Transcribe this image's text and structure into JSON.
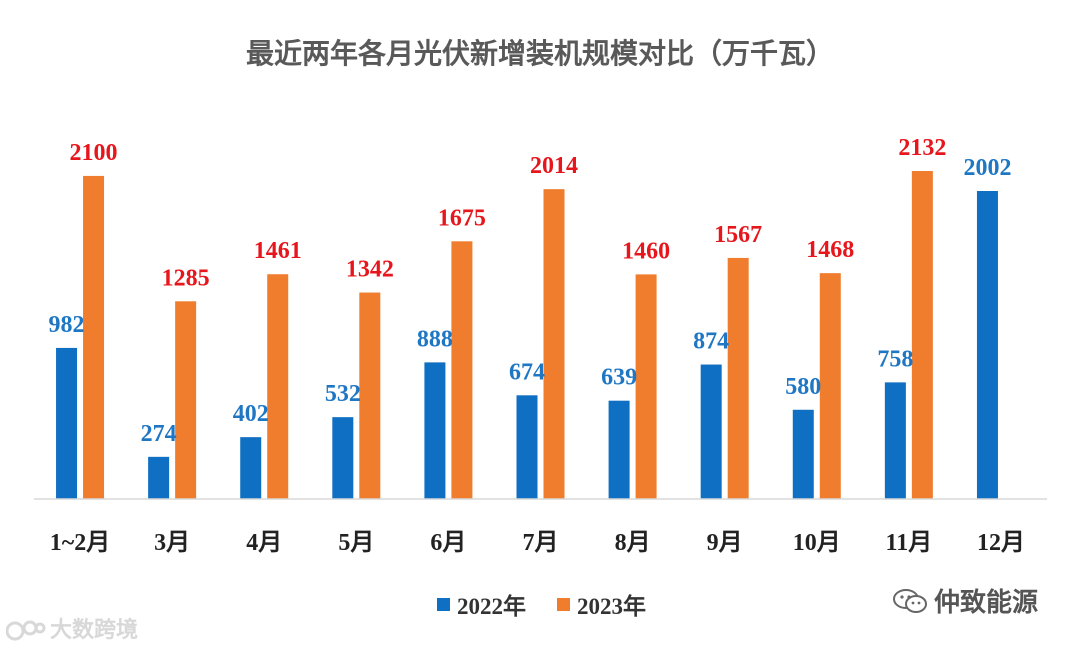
{
  "chart_data": {
    "type": "bar",
    "title": "最近两年各月光伏新增装机规模对比（万千瓦）",
    "categories": [
      "1~2月",
      "3月",
      "4月",
      "5月",
      "6月",
      "7月",
      "8月",
      "9月",
      "10月",
      "11月",
      "12月"
    ],
    "series": [
      {
        "name": "2022年",
        "color": "#0f6fc2",
        "label_color": "#1f77c4",
        "values": [
          982,
          274,
          402,
          532,
          888,
          674,
          639,
          874,
          580,
          758,
          2002
        ]
      },
      {
        "name": "2023年",
        "color": "#ef7d2d",
        "label_color": "#e6161c",
        "values": [
          2100,
          1285,
          1461,
          1342,
          1675,
          2014,
          1460,
          1567,
          1468,
          2132,
          null
        ]
      }
    ],
    "ylim": [
      0,
      2132
    ],
    "xlabel": "",
    "ylabel": "",
    "grid": false,
    "legend": "bottom-center"
  },
  "watermarks": {
    "left": "大数跨境",
    "right": "仲致能源"
  }
}
